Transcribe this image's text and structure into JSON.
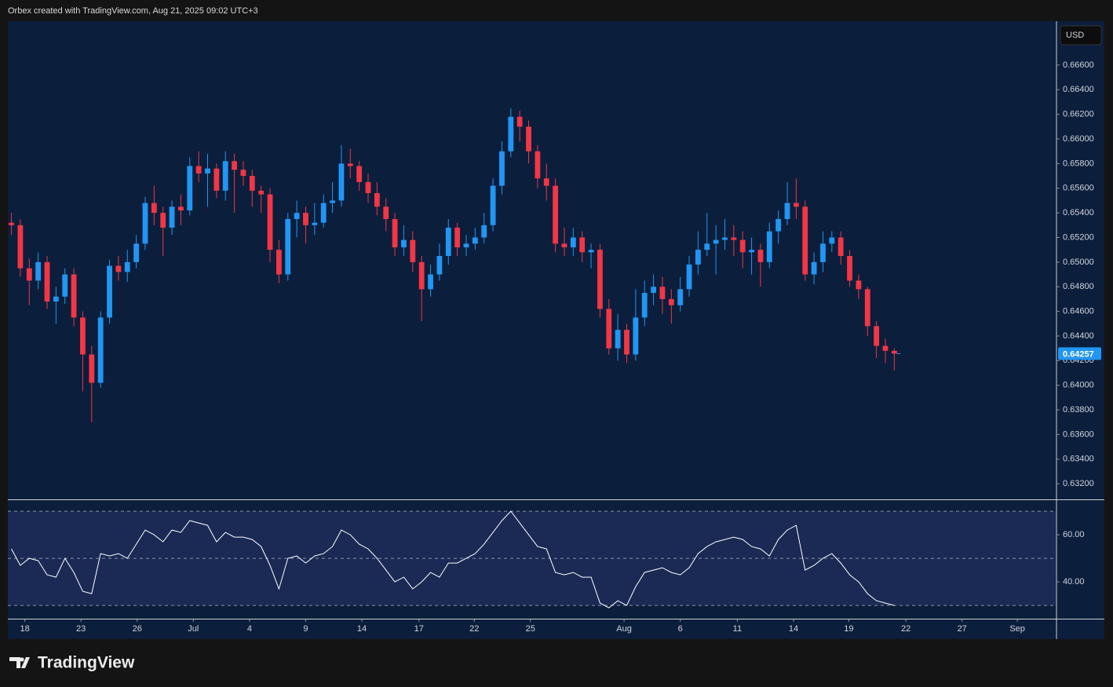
{
  "header": "Orbex created with TradingView.com, Aug 21, 2025 09:02 UTC+3",
  "brand": "TradingView",
  "chart_data": [
    {
      "type": "candlestick",
      "currency": "USD",
      "last_price": 0.64257,
      "up_color": "#2196f3",
      "down_color": "#f23645",
      "xlim": [
        -0.4,
        117.1
      ],
      "ylim": [
        0.6308,
        0.6695
      ],
      "yticks": [
        {
          "value": 0.632,
          "label": "0.63200"
        },
        {
          "value": 0.634,
          "label": "0.63400"
        },
        {
          "value": 0.636,
          "label": "0.63600"
        },
        {
          "value": 0.638,
          "label": "0.63800"
        },
        {
          "value": 0.64,
          "label": "0.64000"
        },
        {
          "value": 0.642,
          "label": "0.64200"
        },
        {
          "value": 0.644,
          "label": "0.64400"
        },
        {
          "value": 0.646,
          "label": "0.64600"
        },
        {
          "value": 0.648,
          "label": "0.64800"
        },
        {
          "value": 0.65,
          "label": "0.65000"
        },
        {
          "value": 0.652,
          "label": "0.65200"
        },
        {
          "value": 0.654,
          "label": "0.65400"
        },
        {
          "value": 0.656,
          "label": "0.65600"
        },
        {
          "value": 0.658,
          "label": "0.65800"
        },
        {
          "value": 0.66,
          "label": "0.66000"
        },
        {
          "value": 0.662,
          "label": "0.66200"
        },
        {
          "value": 0.664,
          "label": "0.66400"
        },
        {
          "value": 0.666,
          "label": "0.66600"
        }
      ],
      "open": [
        0.6532,
        0.653,
        0.6495,
        0.6485,
        0.65,
        0.6468,
        0.6472,
        0.649,
        0.6455,
        0.6425,
        0.6402,
        0.6455,
        0.6497,
        0.6492,
        0.65,
        0.6515,
        0.6548,
        0.654,
        0.6528,
        0.6545,
        0.6542,
        0.6578,
        0.6572,
        0.6576,
        0.6558,
        0.6582,
        0.6575,
        0.657,
        0.6558,
        0.6555,
        0.651,
        0.649,
        0.6535,
        0.654,
        0.653,
        0.6532,
        0.6548,
        0.655,
        0.658,
        0.6578,
        0.6565,
        0.6556,
        0.6545,
        0.6535,
        0.6512,
        0.6518,
        0.65,
        0.6478,
        0.649,
        0.6505,
        0.6528,
        0.6512,
        0.6515,
        0.652,
        0.653,
        0.6562,
        0.659,
        0.6618,
        0.661,
        0.659,
        0.6568,
        0.6562,
        0.6515,
        0.6512,
        0.652,
        0.6508,
        0.651,
        0.6462,
        0.643,
        0.6445,
        0.6425,
        0.6455,
        0.6475,
        0.648,
        0.647,
        0.6465,
        0.6478,
        0.6498,
        0.651,
        0.6515,
        0.6518,
        0.652,
        0.6518,
        0.6508,
        0.651,
        0.65,
        0.6525,
        0.6535,
        0.6548,
        0.6545,
        0.649,
        0.65,
        0.6515,
        0.652,
        0.6505,
        0.6485,
        0.6478,
        0.6448,
        0.6432,
        0.6428
      ],
      "high": [
        0.654,
        0.6535,
        0.6503,
        0.6508,
        0.6505,
        0.648,
        0.6495,
        0.6495,
        0.646,
        0.6432,
        0.646,
        0.6502,
        0.6505,
        0.651,
        0.6522,
        0.6553,
        0.6562,
        0.6545,
        0.655,
        0.6555,
        0.6585,
        0.659,
        0.6588,
        0.658,
        0.659,
        0.6588,
        0.6582,
        0.6575,
        0.6562,
        0.656,
        0.6518,
        0.654,
        0.655,
        0.6545,
        0.6548,
        0.6555,
        0.6565,
        0.6595,
        0.6592,
        0.6582,
        0.6572,
        0.6565,
        0.6552,
        0.654,
        0.653,
        0.6525,
        0.6505,
        0.6498,
        0.6515,
        0.6535,
        0.6532,
        0.6522,
        0.6528,
        0.654,
        0.6568,
        0.6598,
        0.6625,
        0.6623,
        0.6615,
        0.6595,
        0.658,
        0.6568,
        0.6528,
        0.6528,
        0.6525,
        0.6515,
        0.6515,
        0.647,
        0.6458,
        0.645,
        0.6478,
        0.6485,
        0.649,
        0.6488,
        0.6478,
        0.6488,
        0.6505,
        0.6525,
        0.654,
        0.653,
        0.6535,
        0.653,
        0.6525,
        0.652,
        0.6515,
        0.6532,
        0.6542,
        0.6565,
        0.6568,
        0.655,
        0.6508,
        0.6525,
        0.6525,
        0.6525,
        0.651,
        0.649,
        0.648,
        0.6452,
        0.6438,
        0.643
      ],
      "low": [
        0.6522,
        0.6488,
        0.6465,
        0.6478,
        0.6462,
        0.645,
        0.6466,
        0.6448,
        0.6395,
        0.637,
        0.6398,
        0.645,
        0.6485,
        0.6484,
        0.6495,
        0.651,
        0.653,
        0.6505,
        0.6522,
        0.653,
        0.6538,
        0.6565,
        0.6545,
        0.6552,
        0.655,
        0.654,
        0.6562,
        0.6545,
        0.654,
        0.65,
        0.6483,
        0.6485,
        0.652,
        0.6515,
        0.6522,
        0.6528,
        0.654,
        0.6545,
        0.6568,
        0.6558,
        0.6548,
        0.6538,
        0.6525,
        0.6505,
        0.6505,
        0.6492,
        0.6452,
        0.6472,
        0.6485,
        0.6498,
        0.6505,
        0.6505,
        0.651,
        0.6515,
        0.6525,
        0.6555,
        0.6585,
        0.6598,
        0.658,
        0.656,
        0.655,
        0.6508,
        0.6505,
        0.6505,
        0.65,
        0.6495,
        0.6455,
        0.6425,
        0.642,
        0.6418,
        0.642,
        0.6448,
        0.6465,
        0.6458,
        0.645,
        0.646,
        0.6472,
        0.649,
        0.6505,
        0.649,
        0.651,
        0.6505,
        0.6495,
        0.649,
        0.648,
        0.6495,
        0.6515,
        0.653,
        0.6535,
        0.6485,
        0.6482,
        0.6492,
        0.6508,
        0.6498,
        0.648,
        0.647,
        0.644,
        0.6422,
        0.6418,
        0.6412
      ],
      "close": [
        0.653,
        0.6495,
        0.6485,
        0.65,
        0.6468,
        0.6472,
        0.649,
        0.6455,
        0.6425,
        0.6402,
        0.6455,
        0.6497,
        0.6492,
        0.65,
        0.6515,
        0.6548,
        0.654,
        0.6528,
        0.6545,
        0.6542,
        0.6578,
        0.6572,
        0.6576,
        0.6558,
        0.6582,
        0.6575,
        0.657,
        0.6558,
        0.6555,
        0.651,
        0.649,
        0.6535,
        0.654,
        0.653,
        0.6532,
        0.6548,
        0.655,
        0.658,
        0.6578,
        0.6565,
        0.6556,
        0.6545,
        0.6535,
        0.6512,
        0.6518,
        0.65,
        0.6478,
        0.649,
        0.6505,
        0.6528,
        0.6512,
        0.6515,
        0.652,
        0.653,
        0.6562,
        0.659,
        0.6618,
        0.661,
        0.659,
        0.6568,
        0.6562,
        0.6515,
        0.6512,
        0.652,
        0.6508,
        0.651,
        0.6462,
        0.643,
        0.6445,
        0.6425,
        0.6455,
        0.6475,
        0.648,
        0.647,
        0.6465,
        0.6478,
        0.6498,
        0.651,
        0.6515,
        0.6518,
        0.652,
        0.6518,
        0.6508,
        0.651,
        0.65,
        0.6525,
        0.6535,
        0.6548,
        0.6545,
        0.649,
        0.65,
        0.6515,
        0.652,
        0.6505,
        0.6485,
        0.6478,
        0.6448,
        0.6432,
        0.6428,
        0.64257
      ]
    },
    {
      "type": "line",
      "color": "#ffffff",
      "xlim": [
        -0.4,
        117.1
      ],
      "ylim": [
        24.7,
        74.7
      ],
      "yticks": [
        {
          "value": 60,
          "label": "60.00"
        },
        {
          "value": 40,
          "label": "40.00"
        }
      ],
      "levels": [
        70,
        50,
        30
      ],
      "xticks": [
        {
          "value": 1.5,
          "label": "18"
        },
        {
          "value": 7.8,
          "label": "23"
        },
        {
          "value": 14.1,
          "label": "26"
        },
        {
          "value": 20.4,
          "label": "Jul"
        },
        {
          "value": 26.7,
          "label": "4"
        },
        {
          "value": 33.0,
          "label": "9"
        },
        {
          "value": 39.3,
          "label": "14"
        },
        {
          "value": 45.7,
          "label": "17"
        },
        {
          "value": 51.9,
          "label": "22"
        },
        {
          "value": 58.2,
          "label": "25"
        },
        {
          "value": 68.7,
          "label": "Aug"
        },
        {
          "value": 75.0,
          "label": "6"
        },
        {
          "value": 81.4,
          "label": "11"
        },
        {
          "value": 87.7,
          "label": "14"
        },
        {
          "value": 93.9,
          "label": "19"
        },
        {
          "value": 100.3,
          "label": "22"
        },
        {
          "value": 106.6,
          "label": "27"
        },
        {
          "value": 112.8,
          "label": "Sep"
        }
      ],
      "values": [
        54,
        47,
        50,
        49,
        43,
        42,
        50,
        44,
        36,
        35,
        52,
        51,
        52,
        50,
        56,
        62,
        60,
        57,
        62,
        61,
        66,
        65,
        64,
        57,
        61,
        59,
        59,
        58,
        55,
        47,
        37,
        50,
        51,
        48,
        51,
        52,
        55,
        62,
        60,
        56,
        54,
        50,
        45,
        40,
        42,
        37,
        40,
        44,
        42,
        48,
        48,
        50,
        52,
        56,
        61,
        66,
        70,
        65,
        60,
        55,
        54,
        44,
        43,
        44,
        42,
        42,
        31,
        29,
        32,
        30,
        38,
        44,
        45,
        46,
        44,
        43,
        46,
        52,
        55,
        57,
        58,
        59,
        58,
        55,
        54,
        51,
        58,
        62,
        64,
        45,
        47,
        50,
        52,
        48,
        43,
        40,
        35,
        32,
        31,
        30
      ]
    }
  ]
}
